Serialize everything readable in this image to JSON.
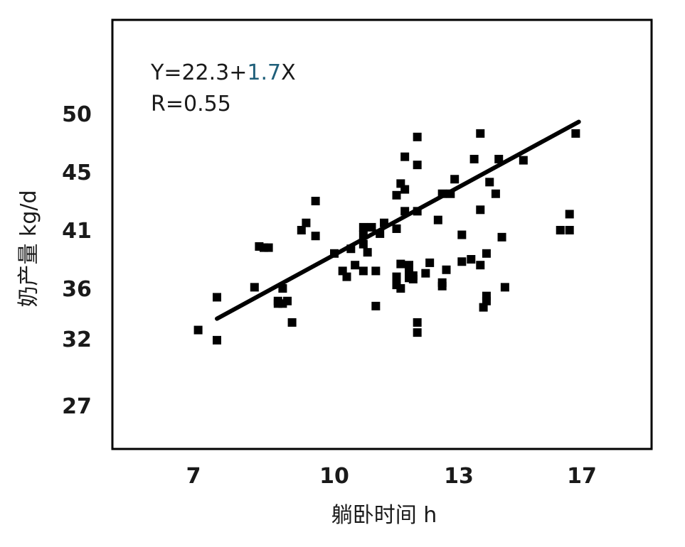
{
  "chart_data": {
    "type": "scatter",
    "xlabel": "躺卧时间 h",
    "ylabel": "奶产量 kg/d",
    "x_ticks": [
      {
        "value": 7,
        "label": "7"
      },
      {
        "value": 10,
        "label": "10"
      },
      {
        "value": 13,
        "label": "13"
      },
      {
        "value": 17,
        "label": "17"
      }
    ],
    "y_ticks": [
      {
        "value": 27,
        "label": "27"
      },
      {
        "value": 32,
        "label": "32"
      },
      {
        "value": 36,
        "label": "36"
      },
      {
        "value": 41,
        "label": "41"
      },
      {
        "value": 45,
        "label": "45"
      },
      {
        "value": 50,
        "label": "50"
      }
    ],
    "equation": {
      "prefix": "Y=22.3+",
      "slope": "1.7",
      "suffix": "X"
    },
    "r_text": "R=0.55",
    "slope_color": "#1f5f7a",
    "marker_color": "#000000",
    "fit_line": {
      "x": [
        7.5,
        16.9
      ],
      "y": [
        33.6,
        49.3
      ]
    },
    "points": [
      [
        7.1,
        32.7
      ],
      [
        7.5,
        35.3
      ],
      [
        7.5,
        31.9
      ],
      [
        8.4,
        39.6
      ],
      [
        8.5,
        39.5
      ],
      [
        8.6,
        39.5
      ],
      [
        8.3,
        36.1
      ],
      [
        8.8,
        35.0
      ],
      [
        8.9,
        36.0
      ],
      [
        8.9,
        34.8
      ],
      [
        8.8,
        34.8
      ],
      [
        9.0,
        35.0
      ],
      [
        9.1,
        33.3
      ],
      [
        9.3,
        41.0
      ],
      [
        9.4,
        41.5
      ],
      [
        9.6,
        40.5
      ],
      [
        9.6,
        43.0
      ],
      [
        10.0,
        39.0
      ],
      [
        10.2,
        37.5
      ],
      [
        10.3,
        37.0
      ],
      [
        10.4,
        39.4
      ],
      [
        10.5,
        38.0
      ],
      [
        10.7,
        37.5
      ],
      [
        10.7,
        39.8
      ],
      [
        10.7,
        41.2
      ],
      [
        10.7,
        40.6
      ],
      [
        10.8,
        39.1
      ],
      [
        10.9,
        41.2
      ],
      [
        11.0,
        37.5
      ],
      [
        11.0,
        34.6
      ],
      [
        11.1,
        40.7
      ],
      [
        11.2,
        41.5
      ],
      [
        11.5,
        41.1
      ],
      [
        11.5,
        36.7
      ],
      [
        11.5,
        36.3
      ],
      [
        11.5,
        37.0
      ],
      [
        11.6,
        38.1
      ],
      [
        11.6,
        36.0
      ],
      [
        11.5,
        43.4
      ],
      [
        11.6,
        44.2
      ],
      [
        11.7,
        43.8
      ],
      [
        11.7,
        46.3
      ],
      [
        11.7,
        42.3
      ],
      [
        11.8,
        37.4
      ],
      [
        11.8,
        38.0
      ],
      [
        11.9,
        37.1
      ],
      [
        11.9,
        36.8
      ],
      [
        11.8,
        36.9
      ],
      [
        12.0,
        48.0
      ],
      [
        12.0,
        45.6
      ],
      [
        12.0,
        42.3
      ],
      [
        12.0,
        33.3
      ],
      [
        12.0,
        32.5
      ],
      [
        12.2,
        37.3
      ],
      [
        12.3,
        38.2
      ],
      [
        12.5,
        41.7
      ],
      [
        12.6,
        36.2
      ],
      [
        12.6,
        36.5
      ],
      [
        12.7,
        37.6
      ],
      [
        12.6,
        43.5
      ],
      [
        12.8,
        43.5
      ],
      [
        12.9,
        44.5
      ],
      [
        13.1,
        38.3
      ],
      [
        13.1,
        40.6
      ],
      [
        13.4,
        38.5
      ],
      [
        13.5,
        46.1
      ],
      [
        13.7,
        38.0
      ],
      [
        13.7,
        42.4
      ],
      [
        13.7,
        48.3
      ],
      [
        13.8,
        34.5
      ],
      [
        13.9,
        35.0
      ],
      [
        13.9,
        35.4
      ],
      [
        13.9,
        39.0
      ],
      [
        14.0,
        44.3
      ],
      [
        14.2,
        43.5
      ],
      [
        14.3,
        46.1
      ],
      [
        14.4,
        40.4
      ],
      [
        14.5,
        36.1
      ],
      [
        15.1,
        46.0
      ],
      [
        16.3,
        41.0
      ],
      [
        16.6,
        42.1
      ],
      [
        16.6,
        41.0
      ],
      [
        16.8,
        48.3
      ]
    ]
  }
}
